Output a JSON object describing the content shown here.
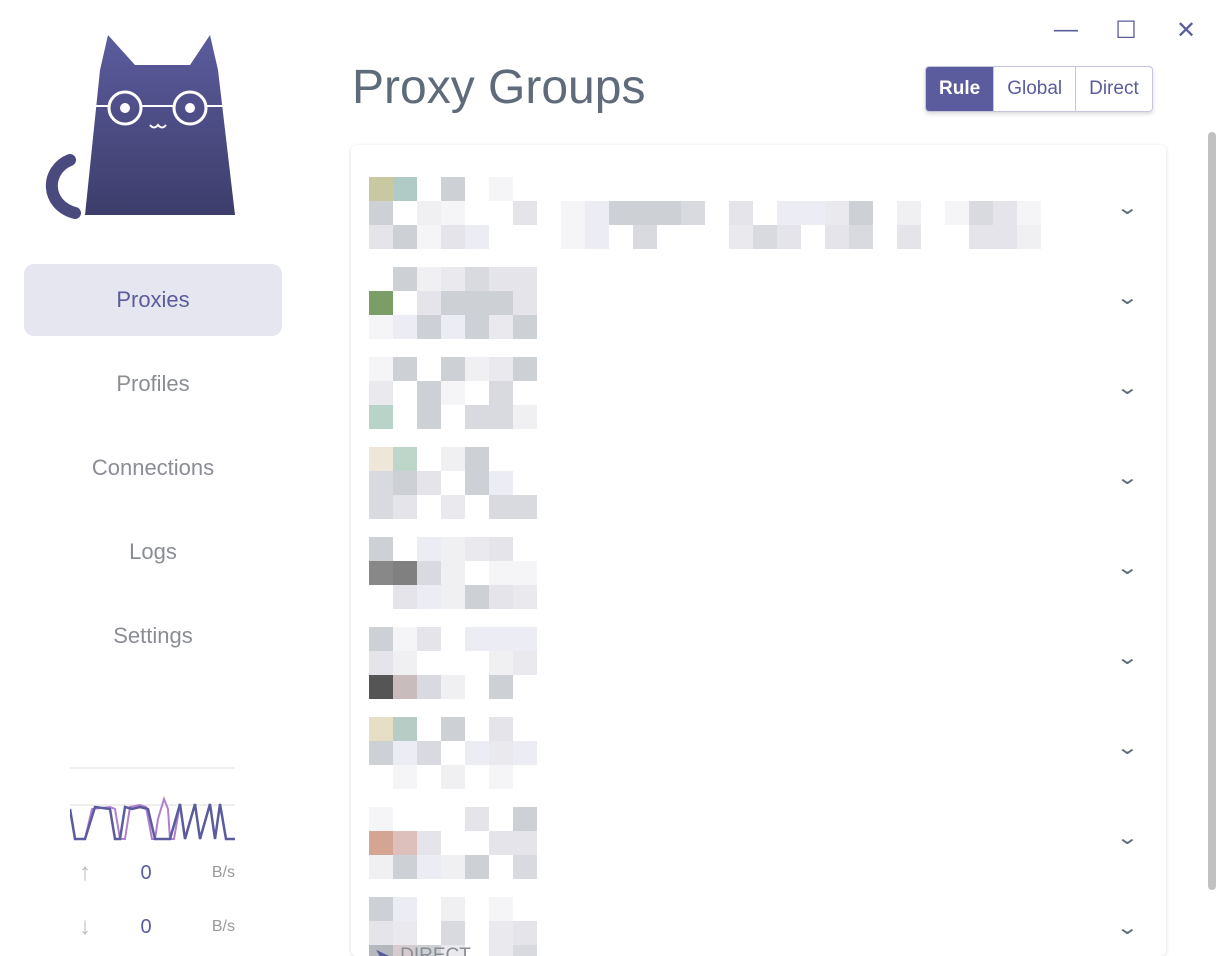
{
  "window": {
    "minimize_icon": "minimize-icon",
    "maximize_icon": "maximize-icon",
    "close_icon": "close-icon"
  },
  "sidebar": {
    "logo": "cat-logo",
    "items": [
      {
        "label": "Proxies",
        "active": true
      },
      {
        "label": "Profiles"
      },
      {
        "label": "Connections"
      },
      {
        "label": "Logs"
      },
      {
        "label": "Settings"
      }
    ],
    "traffic": {
      "upload": "0",
      "upload_unit": "B/s",
      "download": "0",
      "download_unit": "B/s",
      "colors": {
        "upload": "#b17fd0",
        "download": "#5b5c9d"
      }
    }
  },
  "main": {
    "title": "Proxy Groups",
    "modes": [
      {
        "label": "Rule",
        "active": true
      },
      {
        "label": "Global"
      },
      {
        "label": "Direct"
      }
    ],
    "last_group_selected": "DIRECT"
  },
  "colors": {
    "accent": "#5b5c9d",
    "active_nav_bg": "#e6e6f0"
  }
}
